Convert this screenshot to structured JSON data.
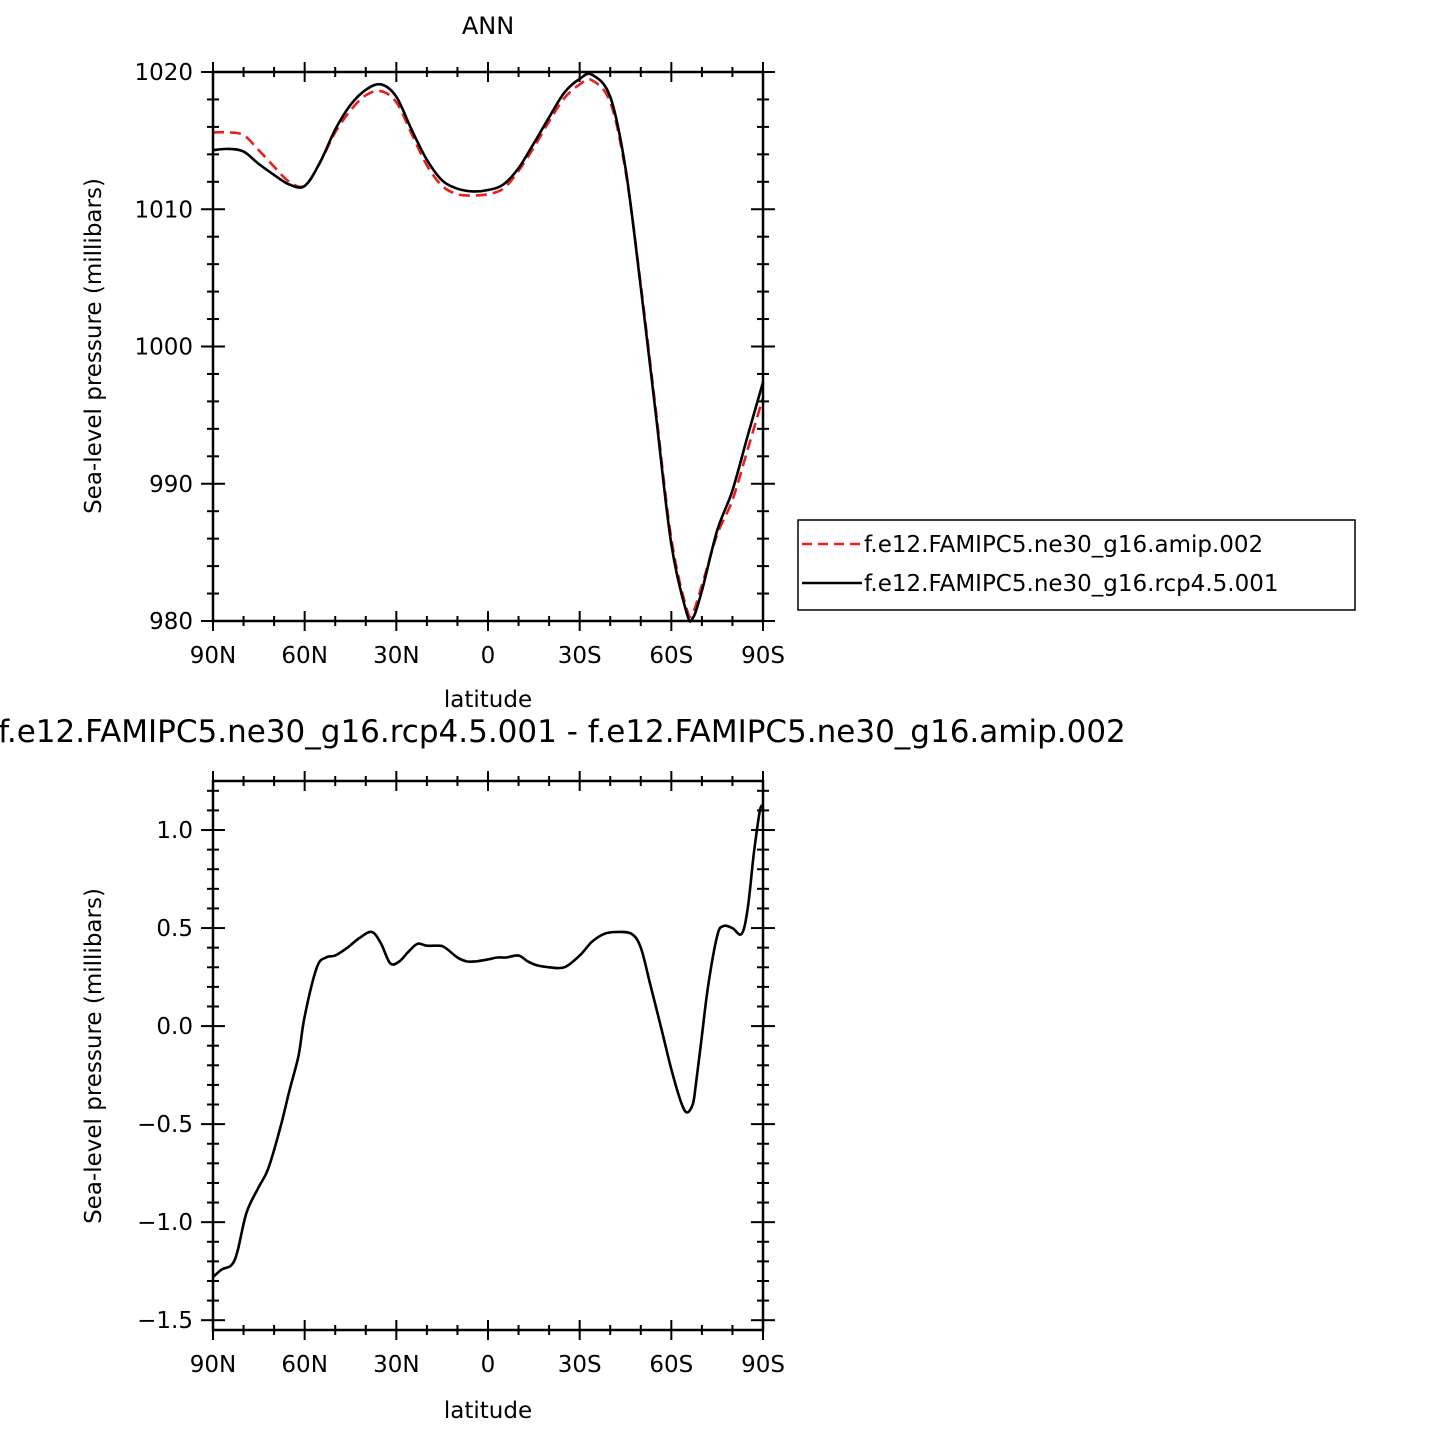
{
  "chart_data": [
    {
      "type": "line",
      "title": "ANN",
      "xlabel": "latitude",
      "ylabel": "Sea-level pressure (millibars)",
      "xlim": [
        90,
        -90
      ],
      "ylim": [
        980,
        1020
      ],
      "x_ticks": [
        90,
        60,
        30,
        0,
        -30,
        -60,
        -90
      ],
      "x_tick_labels": [
        "90N",
        "60N",
        "30N",
        "0",
        "30S",
        "60S",
        "90S"
      ],
      "y_ticks": [
        980,
        990,
        1000,
        1010,
        1020
      ],
      "y_tick_labels": [
        "980",
        "990",
        "1000",
        "1010",
        "1020"
      ],
      "legend_position": "right",
      "series": [
        {
          "name": "f.e12.FAMIPC5.ne30_g16.amip.002",
          "color": "#e8211e",
          "dash": "dashed",
          "x": [
            90,
            85,
            80,
            75,
            70,
            65,
            60,
            55,
            50,
            45,
            40,
            35,
            30,
            25,
            20,
            15,
            10,
            5,
            0,
            -5,
            -10,
            -15,
            -20,
            -25,
            -30,
            -34,
            -40,
            -45,
            -50,
            -55,
            -60,
            -65,
            -67,
            -70,
            -75,
            -80,
            -85,
            -90
          ],
          "values": [
            1015.6,
            1015.6,
            1015.4,
            1014.3,
            1013.1,
            1012.0,
            1011.7,
            1013.4,
            1015.6,
            1017.2,
            1018.3,
            1018.6,
            1017.8,
            1015.5,
            1013.2,
            1011.7,
            1011.1,
            1011.0,
            1011.1,
            1011.5,
            1012.8,
            1014.5,
            1016.4,
            1018.1,
            1019.1,
            1019.4,
            1017.8,
            1012.8,
            1004.5,
            995.2,
            986.0,
            980.9,
            980.6,
            982.6,
            986.3,
            988.8,
            992.5,
            996.3
          ]
        },
        {
          "name": "f.e12.FAMIPC5.ne30_g16.rcp4.5.001",
          "color": "#000000",
          "dash": "solid",
          "x": [
            90,
            85,
            80,
            75,
            70,
            65,
            60,
            55,
            50,
            45,
            40,
            35,
            30,
            25,
            20,
            15,
            10,
            5,
            0,
            -5,
            -10,
            -15,
            -20,
            -25,
            -30,
            -34,
            -40,
            -45,
            -50,
            -55,
            -60,
            -65,
            -67,
            -70,
            -75,
            -80,
            -85,
            -90
          ],
          "values": [
            1014.3,
            1014.4,
            1014.2,
            1013.3,
            1012.5,
            1011.8,
            1011.7,
            1013.4,
            1015.8,
            1017.6,
            1018.7,
            1019.1,
            1018.2,
            1015.8,
            1013.6,
            1012.1,
            1011.5,
            1011.3,
            1011.4,
            1011.8,
            1013.0,
            1014.8,
            1016.7,
            1018.5,
            1019.5,
            1019.8,
            1018.2,
            1013.0,
            1004.3,
            994.9,
            985.6,
            980.6,
            980.2,
            982.2,
            986.6,
            989.5,
            993.5,
            997.4
          ]
        }
      ]
    },
    {
      "type": "line",
      "title": "f.e12.FAMIPC5.ne30_g16.rcp4.5.001 - f.e12.FAMIPC5.ne30_g16.amip.002",
      "xlabel": "latitude",
      "ylabel": "Sea-level pressure (millibars)",
      "xlim": [
        90,
        -90
      ],
      "ylim": [
        -1.55,
        1.25
      ],
      "x_ticks": [
        90,
        60,
        30,
        0,
        -30,
        -60,
        -90
      ],
      "x_tick_labels": [
        "90N",
        "60N",
        "30N",
        "0",
        "30S",
        "60S",
        "90S"
      ],
      "y_ticks": [
        -1.5,
        -1.0,
        -0.5,
        0.0,
        0.5,
        1.0
      ],
      "y_tick_labels": [
        "-1.5",
        "-1.0",
        "-0.5",
        "0.0",
        "0.5",
        "1.0"
      ],
      "series": [
        {
          "color": "#000000",
          "x": [
            90,
            87,
            84,
            82,
            79,
            75,
            72,
            68,
            65,
            62,
            60,
            56,
            53,
            50,
            46,
            42,
            38,
            35,
            32,
            29,
            26,
            23,
            20,
            16,
            14,
            10,
            7,
            4,
            0,
            -3,
            -6,
            -10,
            -13,
            -16,
            -20,
            -25,
            -30,
            -34,
            -38,
            -42,
            -47,
            -50,
            -53,
            -57,
            -60,
            -63,
            -65,
            -67,
            -68,
            -70,
            -72,
            -75,
            -77,
            -80,
            -83,
            -85,
            -87,
            -89,
            -90
          ],
          "values": [
            -1.28,
            -1.24,
            -1.22,
            -1.15,
            -0.95,
            -0.82,
            -0.73,
            -0.52,
            -0.33,
            -0.15,
            0.05,
            0.3,
            0.35,
            0.36,
            0.4,
            0.45,
            0.48,
            0.42,
            0.32,
            0.33,
            0.38,
            0.42,
            0.41,
            0.41,
            0.4,
            0.35,
            0.33,
            0.33,
            0.34,
            0.35,
            0.35,
            0.36,
            0.33,
            0.31,
            0.3,
            0.3,
            0.36,
            0.43,
            0.47,
            0.48,
            0.47,
            0.4,
            0.22,
            -0.03,
            -0.22,
            -0.38,
            -0.44,
            -0.4,
            -0.3,
            -0.05,
            0.2,
            0.46,
            0.51,
            0.5,
            0.47,
            0.6,
            0.88,
            1.1,
            1.12
          ]
        }
      ]
    }
  ]
}
